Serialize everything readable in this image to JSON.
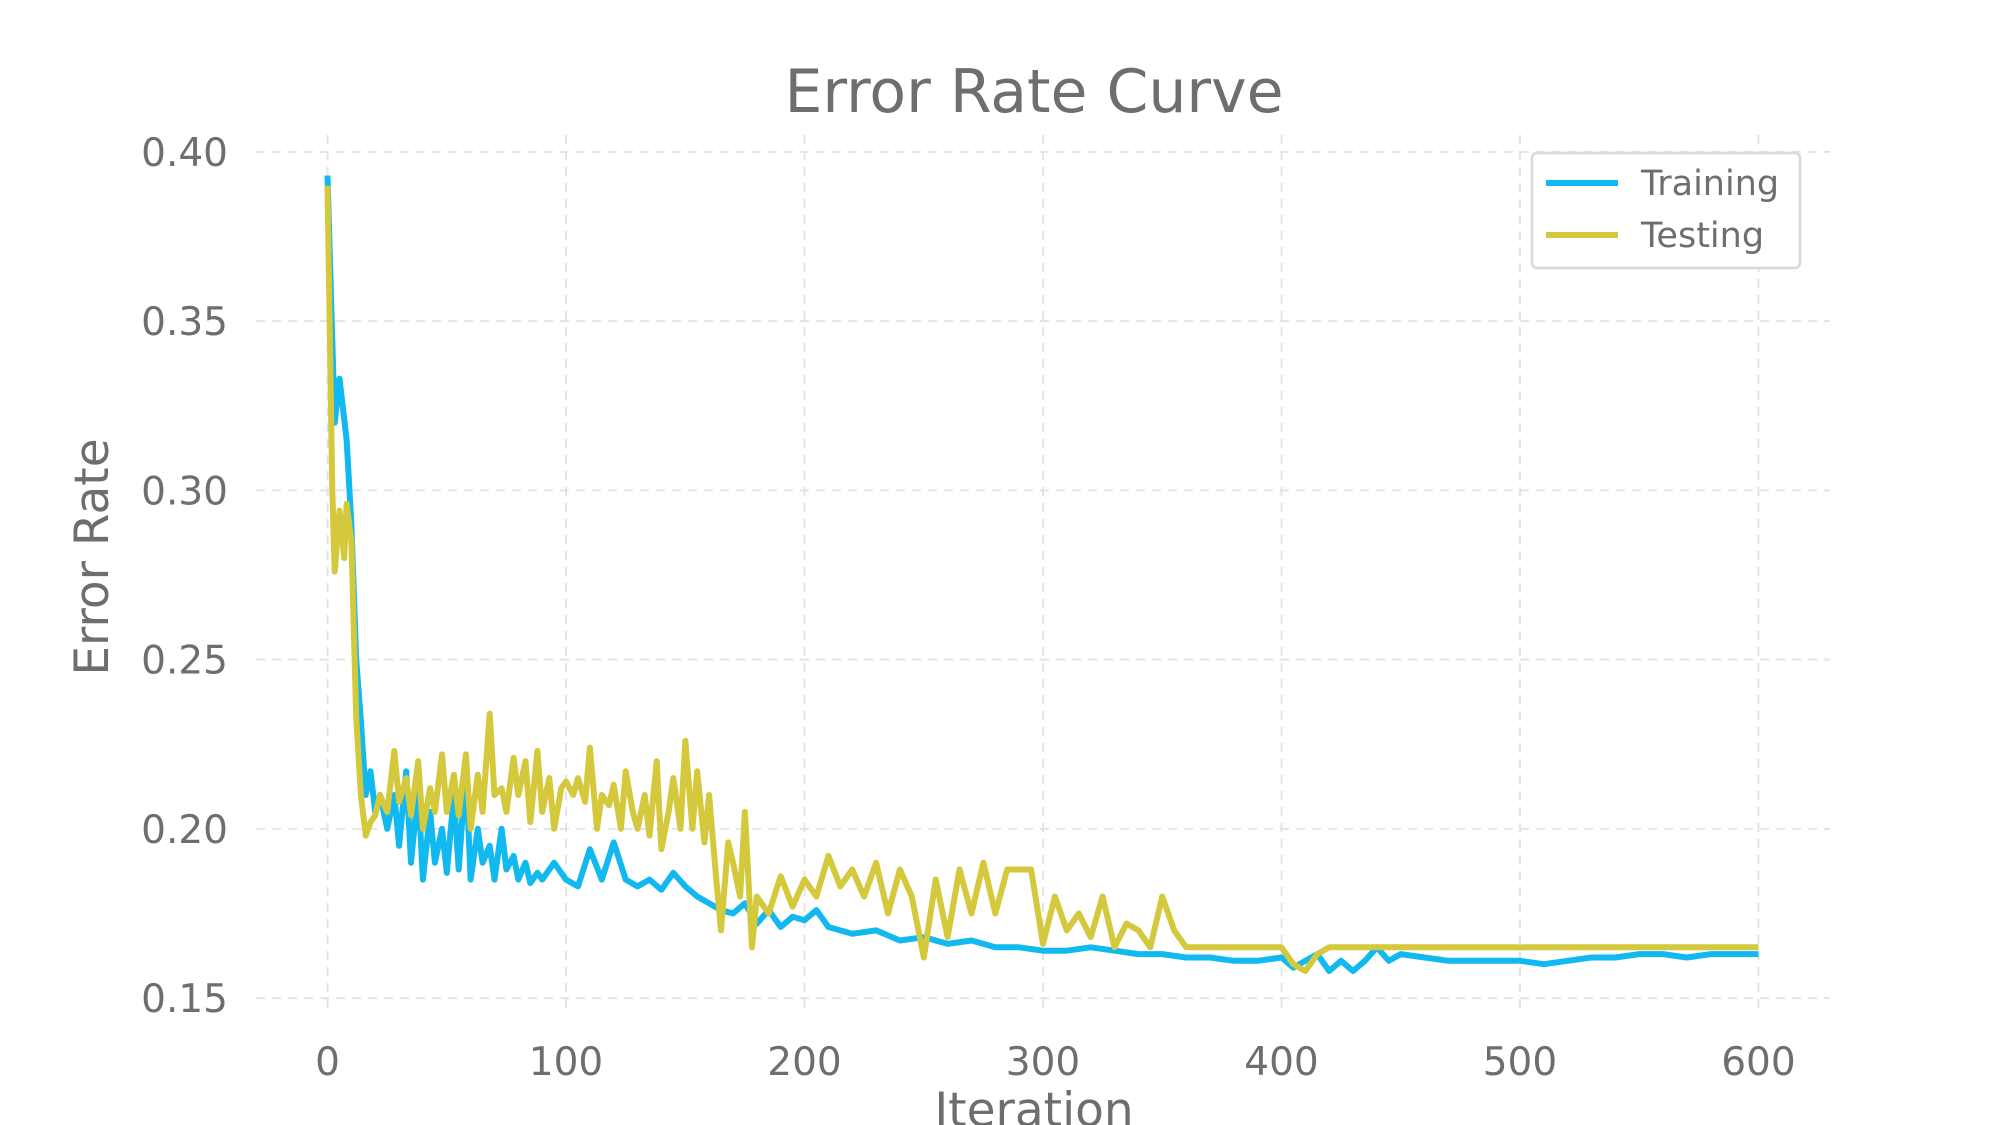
{
  "chart_data": {
    "type": "line",
    "title": "Error Rate Curve",
    "xlabel": "Iteration",
    "ylabel": "Error Rate",
    "xlim": [
      -30,
      630
    ],
    "ylim": [
      0.145,
      0.405
    ],
    "xticks": [
      0,
      100,
      200,
      300,
      400,
      500,
      600
    ],
    "yticks": [
      0.15,
      0.2,
      0.25,
      0.3,
      0.35,
      0.4
    ],
    "ytick_labels": [
      "0.15",
      "0.20",
      "0.25",
      "0.30",
      "0.35",
      "0.40"
    ],
    "grid": true,
    "legend_position": "top-right",
    "series": [
      {
        "name": "Training",
        "color": "#12b8f0",
        "x": [
          0,
          3,
          5,
          8,
          10,
          12,
          14,
          16,
          18,
          20,
          22,
          25,
          28,
          30,
          33,
          35,
          38,
          40,
          43,
          45,
          48,
          50,
          53,
          55,
          58,
          60,
          63,
          65,
          68,
          70,
          73,
          75,
          78,
          80,
          83,
          85,
          88,
          90,
          95,
          100,
          105,
          110,
          115,
          120,
          125,
          130,
          135,
          140,
          145,
          150,
          155,
          160,
          165,
          170,
          175,
          180,
          185,
          190,
          195,
          200,
          205,
          210,
          220,
          230,
          240,
          250,
          260,
          270,
          280,
          290,
          300,
          310,
          320,
          330,
          340,
          350,
          360,
          370,
          380,
          390,
          400,
          405,
          410,
          415,
          420,
          425,
          430,
          435,
          440,
          445,
          450,
          460,
          470,
          480,
          490,
          500,
          510,
          520,
          530,
          540,
          550,
          560,
          570,
          580,
          590,
          600
        ],
        "y": [
          0.393,
          0.32,
          0.333,
          0.315,
          0.29,
          0.25,
          0.232,
          0.21,
          0.217,
          0.205,
          0.21,
          0.2,
          0.21,
          0.195,
          0.217,
          0.19,
          0.212,
          0.185,
          0.205,
          0.19,
          0.2,
          0.187,
          0.21,
          0.188,
          0.218,
          0.185,
          0.2,
          0.19,
          0.195,
          0.185,
          0.2,
          0.188,
          0.192,
          0.185,
          0.19,
          0.184,
          0.187,
          0.185,
          0.19,
          0.185,
          0.183,
          0.194,
          0.185,
          0.196,
          0.185,
          0.183,
          0.185,
          0.182,
          0.187,
          0.183,
          0.18,
          0.178,
          0.176,
          0.175,
          0.178,
          0.172,
          0.176,
          0.171,
          0.174,
          0.173,
          0.176,
          0.171,
          0.169,
          0.17,
          0.167,
          0.168,
          0.166,
          0.167,
          0.165,
          0.165,
          0.164,
          0.164,
          0.165,
          0.164,
          0.163,
          0.163,
          0.162,
          0.162,
          0.161,
          0.161,
          0.162,
          0.159,
          0.161,
          0.163,
          0.158,
          0.161,
          0.158,
          0.161,
          0.165,
          0.161,
          0.163,
          0.162,
          0.161,
          0.161,
          0.161,
          0.161,
          0.16,
          0.161,
          0.162,
          0.162,
          0.163,
          0.163,
          0.162,
          0.163,
          0.163,
          0.163
        ]
      },
      {
        "name": "Testing",
        "color": "#d4c83c",
        "x": [
          0,
          2,
          3,
          5,
          7,
          8,
          10,
          12,
          14,
          16,
          18,
          20,
          22,
          25,
          28,
          30,
          33,
          35,
          38,
          40,
          43,
          45,
          48,
          50,
          53,
          55,
          58,
          60,
          63,
          65,
          68,
          70,
          73,
          75,
          78,
          80,
          83,
          85,
          88,
          90,
          93,
          95,
          98,
          100,
          103,
          105,
          108,
          110,
          113,
          115,
          118,
          120,
          123,
          125,
          128,
          130,
          133,
          135,
          138,
          140,
          143,
          145,
          148,
          150,
          153,
          155,
          158,
          160,
          163,
          165,
          168,
          170,
          173,
          175,
          178,
          180,
          185,
          190,
          195,
          200,
          205,
          210,
          215,
          220,
          225,
          230,
          235,
          240,
          245,
          250,
          255,
          260,
          265,
          270,
          275,
          280,
          285,
          290,
          295,
          300,
          305,
          310,
          315,
          320,
          325,
          330,
          335,
          340,
          345,
          350,
          355,
          360,
          370,
          380,
          390,
          400,
          405,
          410,
          415,
          420,
          430,
          440,
          450,
          460,
          480,
          500,
          520,
          540,
          560,
          580,
          600
        ],
        "y": [
          0.39,
          0.3,
          0.276,
          0.294,
          0.28,
          0.296,
          0.285,
          0.233,
          0.21,
          0.198,
          0.202,
          0.204,
          0.21,
          0.205,
          0.223,
          0.208,
          0.215,
          0.204,
          0.22,
          0.2,
          0.212,
          0.205,
          0.222,
          0.205,
          0.216,
          0.204,
          0.222,
          0.2,
          0.216,
          0.205,
          0.234,
          0.21,
          0.212,
          0.205,
          0.221,
          0.21,
          0.22,
          0.202,
          0.223,
          0.205,
          0.215,
          0.2,
          0.212,
          0.214,
          0.21,
          0.215,
          0.208,
          0.224,
          0.2,
          0.21,
          0.207,
          0.213,
          0.2,
          0.217,
          0.205,
          0.2,
          0.21,
          0.198,
          0.22,
          0.194,
          0.205,
          0.215,
          0.2,
          0.226,
          0.2,
          0.217,
          0.196,
          0.21,
          0.185,
          0.17,
          0.196,
          0.19,
          0.18,
          0.205,
          0.165,
          0.18,
          0.175,
          0.186,
          0.177,
          0.185,
          0.18,
          0.192,
          0.183,
          0.188,
          0.18,
          0.19,
          0.175,
          0.188,
          0.18,
          0.162,
          0.185,
          0.168,
          0.188,
          0.175,
          0.19,
          0.175,
          0.188,
          0.188,
          0.188,
          0.166,
          0.18,
          0.17,
          0.175,
          0.168,
          0.18,
          0.165,
          0.172,
          0.17,
          0.165,
          0.18,
          0.17,
          0.165,
          0.165,
          0.165,
          0.165,
          0.165,
          0.16,
          0.158,
          0.163,
          0.165,
          0.165,
          0.165,
          0.165,
          0.165,
          0.165,
          0.165,
          0.165,
          0.165,
          0.165,
          0.165,
          0.165
        ]
      }
    ]
  }
}
